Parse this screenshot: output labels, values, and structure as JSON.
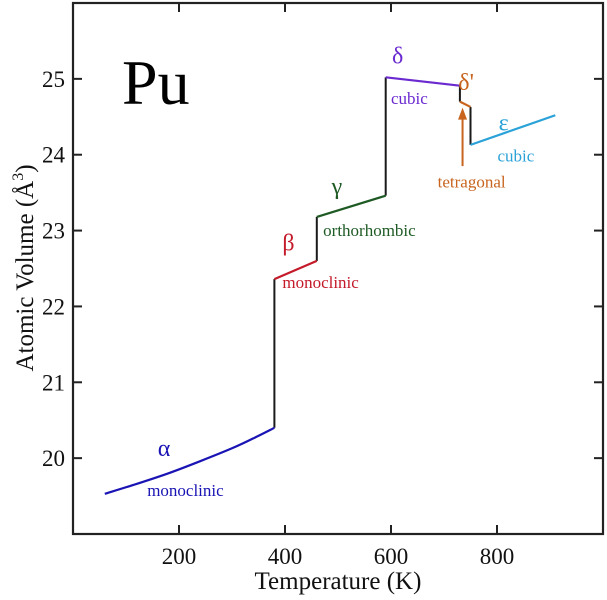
{
  "chart_data": {
    "type": "line",
    "title": "Pu",
    "xlabel": "Temperature (K)",
    "ylabel": "Atomic Volume (Å3)",
    "ylabel_main": "Atomic Volume (Å",
    "ylabel_sup": "3",
    "ylabel_close": ")",
    "xlim": [
      0,
      1000
    ],
    "ylim": [
      19,
      26
    ],
    "xticks": [
      200,
      400,
      600,
      800
    ],
    "yticks": [
      20,
      21,
      22,
      23,
      24,
      25
    ],
    "xtick_labels": [
      "200",
      "400",
      "600",
      "800"
    ],
    "ytick_labels": [
      "20",
      "21",
      "22",
      "23",
      "24",
      "25"
    ],
    "grid": false,
    "series": [
      {
        "name": "α",
        "structure": "monoclinic",
        "color": "#1a14b4",
        "x": [
          60,
          120,
          180,
          240,
          300,
          340,
          380
        ],
        "y": [
          19.53,
          19.66,
          19.8,
          19.96,
          20.13,
          20.26,
          20.4
        ]
      },
      {
        "name": "β",
        "structure": "monoclinic",
        "color": "#c41a2a",
        "x": [
          380,
          460
        ],
        "y": [
          22.36,
          22.6
        ]
      },
      {
        "name": "γ",
        "structure": "orthorhombic",
        "color": "#1e5a24",
        "x": [
          460,
          590
        ],
        "y": [
          23.18,
          23.46
        ]
      },
      {
        "name": "δ",
        "structure": "cubic",
        "color": "#6a2ad0",
        "x": [
          590,
          730
        ],
        "y": [
          25.02,
          24.91
        ]
      },
      {
        "name": "δ'",
        "structure": "tetragonal",
        "color": "#c8641e",
        "x": [
          730,
          750
        ],
        "y": [
          24.7,
          24.63
        ]
      },
      {
        "name": "ε",
        "structure": "cubic",
        "color": "#2aa2d8",
        "x": [
          750,
          910
        ],
        "y": [
          24.13,
          24.52
        ]
      }
    ],
    "transitions": [
      {
        "x": 380,
        "y_from": 20.4,
        "y_to": 22.36
      },
      {
        "x": 460,
        "y_from": 22.6,
        "y_to": 23.18
      },
      {
        "x": 590,
        "y_from": 23.46,
        "y_to": 25.02
      },
      {
        "x": 730,
        "y_from": 24.91,
        "y_to": 24.7
      },
      {
        "x": 750,
        "y_from": 24.63,
        "y_to": 24.13
      }
    ],
    "transition_color": "#1a1a1a",
    "annotations": [
      {
        "text": "α",
        "kind": "greek",
        "series": 0,
        "x": 160,
        "y": 20.03
      },
      {
        "text": "monoclinic",
        "kind": "phase",
        "series": 0,
        "x": 140,
        "y": 19.5
      },
      {
        "text": "β",
        "kind": "greek",
        "series": 1,
        "x": 395,
        "y": 22.74
      },
      {
        "text": "monoclinic",
        "kind": "phase",
        "series": 1,
        "x": 395,
        "y": 22.24
      },
      {
        "text": "γ",
        "kind": "greek",
        "series": 2,
        "x": 488,
        "y": 23.48
      },
      {
        "text": "orthorhombic",
        "kind": "phase",
        "series": 2,
        "x": 472,
        "y": 22.93
      },
      {
        "text": "δ",
        "kind": "greek",
        "series": 3,
        "x": 602,
        "y": 25.2
      },
      {
        "text": "cubic",
        "kind": "phase",
        "series": 3,
        "x": 600,
        "y": 24.67
      },
      {
        "text": "δ'",
        "kind": "greek",
        "series": 4,
        "x": 727,
        "y": 24.85
      },
      {
        "text": "tetragonal",
        "kind": "phase",
        "series": 4,
        "x": 688,
        "y": 23.57
      },
      {
        "text": "ε",
        "kind": "greek",
        "series": 5,
        "x": 803,
        "y": 24.32
      },
      {
        "text": "cubic",
        "kind": "phase",
        "series": 5,
        "x": 801,
        "y": 23.91
      }
    ],
    "arrow": {
      "x": 735,
      "y_from": 23.85,
      "y_to": 24.62,
      "color": "#c8641e"
    },
    "axis_color": "#222222"
  }
}
